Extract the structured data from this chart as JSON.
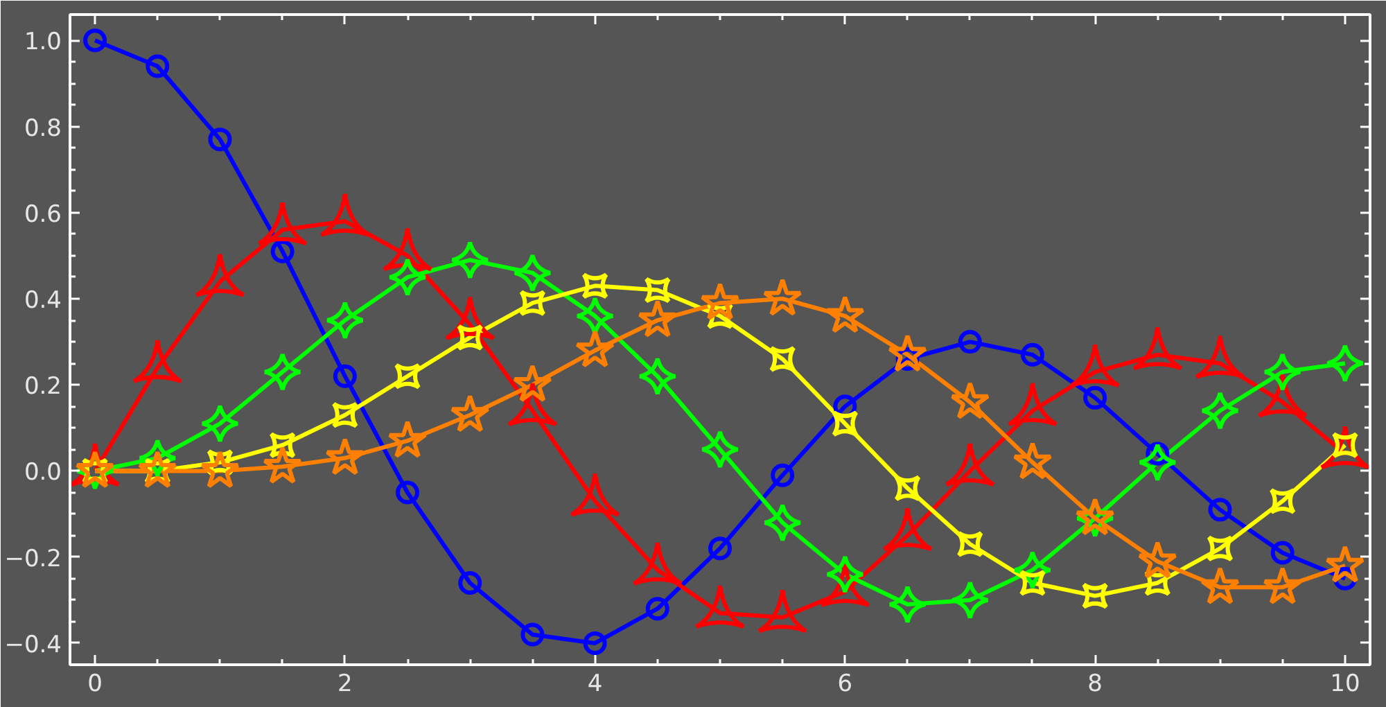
{
  "chart_data": {
    "type": "line",
    "x": [
      0,
      0.5,
      1,
      1.5,
      2,
      2.5,
      3,
      3.5,
      4,
      4.5,
      5,
      5.5,
      6,
      6.5,
      7,
      7.5,
      8,
      8.5,
      9,
      9.5,
      10
    ],
    "series": [
      {
        "color": "#0000ff",
        "marker": "circle",
        "values": [
          1.0,
          0.94,
          0.77,
          0.51,
          0.22,
          -0.05,
          -0.26,
          -0.38,
          -0.4,
          -0.32,
          -0.18,
          -0.01,
          0.15,
          0.26,
          0.3,
          0.27,
          0.17,
          0.04,
          -0.09,
          -0.19,
          -0.25
        ]
      },
      {
        "color": "#ff0000",
        "marker": "triangle",
        "values": [
          0,
          0.24,
          0.44,
          0.56,
          0.58,
          0.5,
          0.34,
          0.14,
          -0.07,
          -0.23,
          -0.33,
          -0.34,
          -0.28,
          -0.15,
          0,
          0.14,
          0.23,
          0.27,
          0.25,
          0.16,
          0.04
        ]
      },
      {
        "color": "#00ff00",
        "marker": "diamond",
        "values": [
          0,
          0.03,
          0.11,
          0.23,
          0.35,
          0.45,
          0.49,
          0.46,
          0.36,
          0.22,
          0.05,
          -0.12,
          -0.24,
          -0.31,
          -0.3,
          -0.23,
          -0.11,
          0.02,
          0.14,
          0.23,
          0.25
        ]
      },
      {
        "color": "#ffff00",
        "marker": "square",
        "values": [
          0,
          0,
          0.02,
          0.06,
          0.13,
          0.22,
          0.31,
          0.39,
          0.43,
          0.42,
          0.36,
          0.26,
          0.11,
          -0.04,
          -0.17,
          -0.26,
          -0.29,
          -0.26,
          -0.18,
          -0.07,
          0.06
        ]
      },
      {
        "color": "#ff8000",
        "marker": "star",
        "values": [
          0,
          0,
          0,
          0.01,
          0.03,
          0.07,
          0.13,
          0.2,
          0.28,
          0.35,
          0.39,
          0.4,
          0.36,
          0.27,
          0.16,
          0.02,
          -0.11,
          -0.21,
          -0.27,
          -0.27,
          -0.22
        ]
      }
    ],
    "xlim": [
      -0.2,
      10.2
    ],
    "ylim": [
      -0.45,
      1.06
    ],
    "xticks": [
      0,
      {
        "value": 0.5,
        "label": null
      },
      {
        "value": 1,
        "label": null
      },
      {
        "value": 1.5,
        "label": null
      },
      2,
      {
        "value": 2.5,
        "label": null
      },
      {
        "value": 3,
        "label": null
      },
      {
        "value": 3.5,
        "label": null
      },
      4,
      {
        "value": 4.5,
        "label": null
      },
      {
        "value": 5,
        "label": null
      },
      {
        "value": 5.5,
        "label": null
      },
      6,
      {
        "value": 6.5,
        "label": null
      },
      {
        "value": 7,
        "label": null
      },
      {
        "value": 7.5,
        "label": null
      },
      8,
      {
        "value": 8.5,
        "label": null
      },
      {
        "value": 9,
        "label": null
      },
      {
        "value": 9.5,
        "label": null
      },
      10
    ],
    "yticks": [
      {
        "value": -0.4,
        "label": "−0.4"
      },
      {
        "value": -0.35,
        "label": null
      },
      {
        "value": -0.3,
        "label": null
      },
      {
        "value": -0.25,
        "label": null
      },
      {
        "value": -0.2,
        "label": "−0.2"
      },
      {
        "value": -0.15,
        "label": null
      },
      {
        "value": -0.1,
        "label": null
      },
      {
        "value": -0.05,
        "label": null
      },
      {
        "value": 0,
        "label": "0.0"
      },
      {
        "value": 0.05,
        "label": null
      },
      {
        "value": 0.1,
        "label": null
      },
      {
        "value": 0.15,
        "label": null
      },
      0.2,
      {
        "value": 0.25,
        "label": null
      },
      {
        "value": 0.3,
        "label": null
      },
      {
        "value": 0.35,
        "label": null
      },
      0.4,
      {
        "value": 0.45,
        "label": null
      },
      {
        "value": 0.5,
        "label": null
      },
      {
        "value": 0.55,
        "label": null
      },
      0.6,
      {
        "value": 0.65,
        "label": null
      },
      {
        "value": 0.7,
        "label": null
      },
      {
        "value": 0.75,
        "label": null
      },
      0.8,
      {
        "value": 0.85,
        "label": null
      },
      {
        "value": 0.9,
        "label": null
      },
      {
        "value": 0.95,
        "label": null
      },
      {
        "value": 1,
        "label": "1.0"
      }
    ]
  }
}
